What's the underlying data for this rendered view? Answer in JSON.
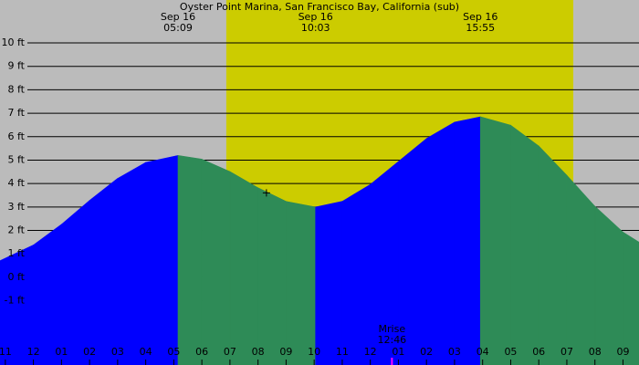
{
  "chart_data": {
    "type": "area",
    "title": "Oyster Point Marina, San Francisco Bay, California (sub)",
    "xlim": [
      -1.19,
      21.57
    ],
    "ylim": [
      -3.74,
      11.83
    ],
    "yticks": [
      {
        "value": 10,
        "label": "10 ft"
      },
      {
        "value": 9,
        "label": "9 ft"
      },
      {
        "value": 8,
        "label": "8 ft"
      },
      {
        "value": 7,
        "label": "7 ft"
      },
      {
        "value": 6,
        "label": "6 ft"
      },
      {
        "value": 5,
        "label": "5 ft"
      },
      {
        "value": 4,
        "label": "4 ft"
      },
      {
        "value": 3,
        "label": "3 ft"
      },
      {
        "value": 2,
        "label": "2 ft"
      },
      {
        "value": 1,
        "label": "1 ft"
      },
      {
        "value": 0,
        "label": "0 ft"
      },
      {
        "value": -1,
        "label": "-1 ft"
      }
    ],
    "xticks": [
      {
        "value": -1,
        "label": "11"
      },
      {
        "value": 0,
        "label": "12"
      },
      {
        "value": 1,
        "label": "01"
      },
      {
        "value": 2,
        "label": "02"
      },
      {
        "value": 3,
        "label": "03"
      },
      {
        "value": 4,
        "label": "04"
      },
      {
        "value": 5,
        "label": "05"
      },
      {
        "value": 6,
        "label": "06"
      },
      {
        "value": 7,
        "label": "07"
      },
      {
        "value": 8,
        "label": "08"
      },
      {
        "value": 9,
        "label": "09"
      },
      {
        "value": 10,
        "label": "10"
      },
      {
        "value": 11,
        "label": "11"
      },
      {
        "value": 12,
        "label": "12"
      },
      {
        "value": 13,
        "label": "01"
      },
      {
        "value": 14,
        "label": "02"
      },
      {
        "value": 15,
        "label": "03"
      },
      {
        "value": 16,
        "label": "04"
      },
      {
        "value": 17,
        "label": "05"
      },
      {
        "value": 18,
        "label": "06"
      },
      {
        "value": 19,
        "label": "07"
      },
      {
        "value": 20,
        "label": "08"
      },
      {
        "value": 21,
        "label": "09"
      }
    ],
    "grid": true,
    "background_color": "#bbbbbb",
    "daylight": {
      "start": 6.87,
      "end": 19.23,
      "color": "#cccc00"
    },
    "x": [
      -1.19,
      0,
      1,
      2,
      3,
      4,
      5.15,
      6,
      7,
      8,
      9,
      10.05,
      11,
      12,
      13,
      14,
      15,
      15.92,
      17,
      18,
      19,
      20,
      21,
      21.57
    ],
    "values": [
      0.71,
      1.38,
      2.26,
      3.28,
      4.22,
      4.9,
      5.2,
      5.04,
      4.51,
      3.82,
      3.24,
      3.0,
      3.24,
      3.96,
      4.94,
      5.92,
      6.62,
      6.85,
      6.49,
      5.6,
      4.35,
      3.03,
      1.93,
      1.5
    ],
    "color_rising": "#0000ff",
    "color_falling": "#2e8b57",
    "extremes": [
      {
        "date": "Sep 16",
        "time": "05:09",
        "x": 5.15
      },
      {
        "date": "Sep 16",
        "time": "10:03",
        "x": 10.05
      },
      {
        "date": "Sep 16",
        "time": "15:55",
        "x": 15.92
      }
    ],
    "moonrise": {
      "label": "Mrise",
      "time": "12:46",
      "x": 12.77,
      "color": "#ff00ff"
    },
    "marker": {
      "x": 8.3,
      "value": 3.6
    }
  }
}
